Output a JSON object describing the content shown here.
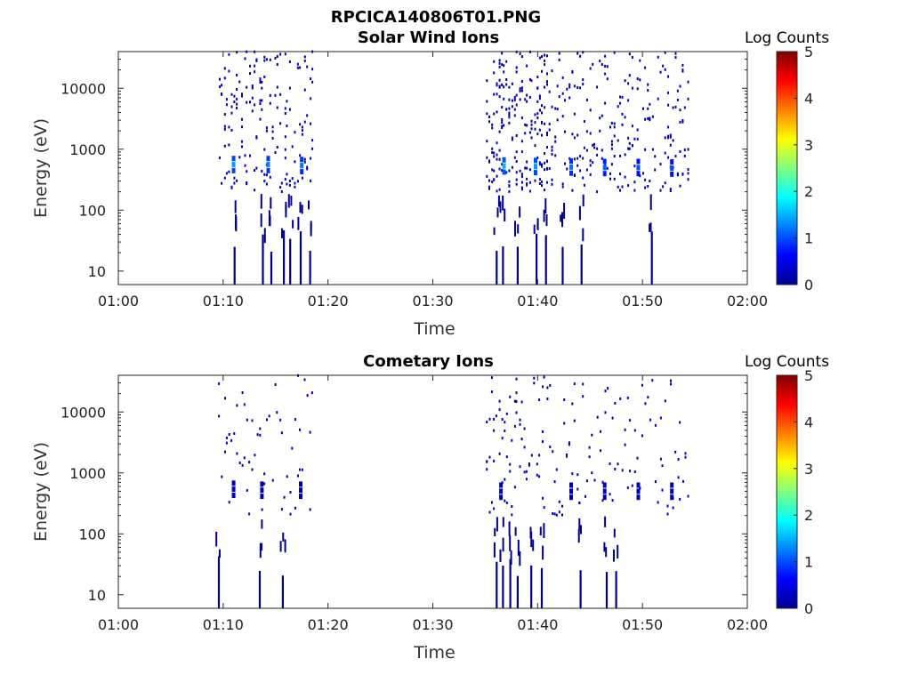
{
  "figure_title": "RPCICA140806T01.PNG",
  "chart_data": [
    {
      "type": "heatmap",
      "title": "Solar Wind Ions",
      "xlabel": "Time",
      "ylabel": "Energy (eV)",
      "x_ticks": [
        "01:00",
        "01:10",
        "01:20",
        "01:30",
        "01:40",
        "01:50",
        "02:00"
      ],
      "xlim_minutes": [
        60,
        120
      ],
      "y_scale": "log",
      "y_ticks": [
        10,
        100,
        1000,
        10000
      ],
      "y_tick_labels": [
        "10",
        "100",
        "1000",
        "10000"
      ],
      "ylim": [
        6,
        40000
      ],
      "colorbar": {
        "label": "Log Counts",
        "range": [
          0,
          5
        ],
        "ticks": [
          "0",
          "1",
          "2",
          "3",
          "4",
          "5"
        ]
      },
      "active_intervals": [
        [
          69.5,
          78.5
        ],
        [
          95,
          114.5
        ]
      ],
      "peaks": [
        {
          "t": 71,
          "e": 560,
          "value": 1.4
        },
        {
          "t": 74.3,
          "e": 560,
          "value": 1.3
        },
        {
          "t": 77.5,
          "e": 540,
          "value": 1.2
        },
        {
          "t": 96.8,
          "e": 530,
          "value": 1.5
        },
        {
          "t": 99.8,
          "e": 520,
          "value": 1.4
        },
        {
          "t": 103.2,
          "e": 510,
          "value": 1.2
        },
        {
          "t": 106.4,
          "e": 500,
          "value": 1.1
        },
        {
          "t": 109.6,
          "e": 500,
          "value": 1.0
        },
        {
          "t": 112.8,
          "e": 490,
          "value": 1.0
        }
      ],
      "low_energy_bursts": [
        71,
        73.7,
        74.5,
        75.7,
        76.3,
        77.3,
        78.2,
        96,
        96.6,
        98,
        99.8,
        100.7,
        102.3,
        104.1,
        110.8
      ]
    },
    {
      "type": "heatmap",
      "title": "Cometary Ions",
      "xlabel": "Time",
      "ylabel": "Energy (eV)",
      "x_ticks": [
        "01:00",
        "01:10",
        "01:20",
        "01:30",
        "01:40",
        "01:50",
        "02:00"
      ],
      "xlim_minutes": [
        60,
        120
      ],
      "y_scale": "log",
      "y_ticks": [
        10,
        100,
        1000,
        10000
      ],
      "y_tick_labels": [
        "10",
        "100",
        "1000",
        "10000"
      ],
      "ylim": [
        6,
        40000
      ],
      "colorbar": {
        "label": "Log Counts",
        "range": [
          0,
          5
        ],
        "ticks": [
          "0",
          "1",
          "2",
          "3",
          "4",
          "5"
        ]
      },
      "active_intervals": [
        [
          69.5,
          78.5
        ],
        [
          95,
          114.5
        ]
      ],
      "peaks": [
        {
          "t": 71,
          "e": 540,
          "value": 0.4
        },
        {
          "t": 73.7,
          "e": 520,
          "value": 0.3
        },
        {
          "t": 77.4,
          "e": 520,
          "value": 0.3
        },
        {
          "t": 96.5,
          "e": 500,
          "value": 0.4
        },
        {
          "t": 103.2,
          "e": 500,
          "value": 0.3
        },
        {
          "t": 106.4,
          "e": 500,
          "value": 0.3
        },
        {
          "t": 109.6,
          "e": 500,
          "value": 0.3
        },
        {
          "t": 112.8,
          "e": 500,
          "value": 0.3
        }
      ],
      "low_energy_bursts": [
        69.5,
        73.4,
        75.6,
        96,
        96.6,
        97.3,
        98,
        99.3,
        100.3,
        104,
        106.5,
        107.4
      ]
    }
  ]
}
